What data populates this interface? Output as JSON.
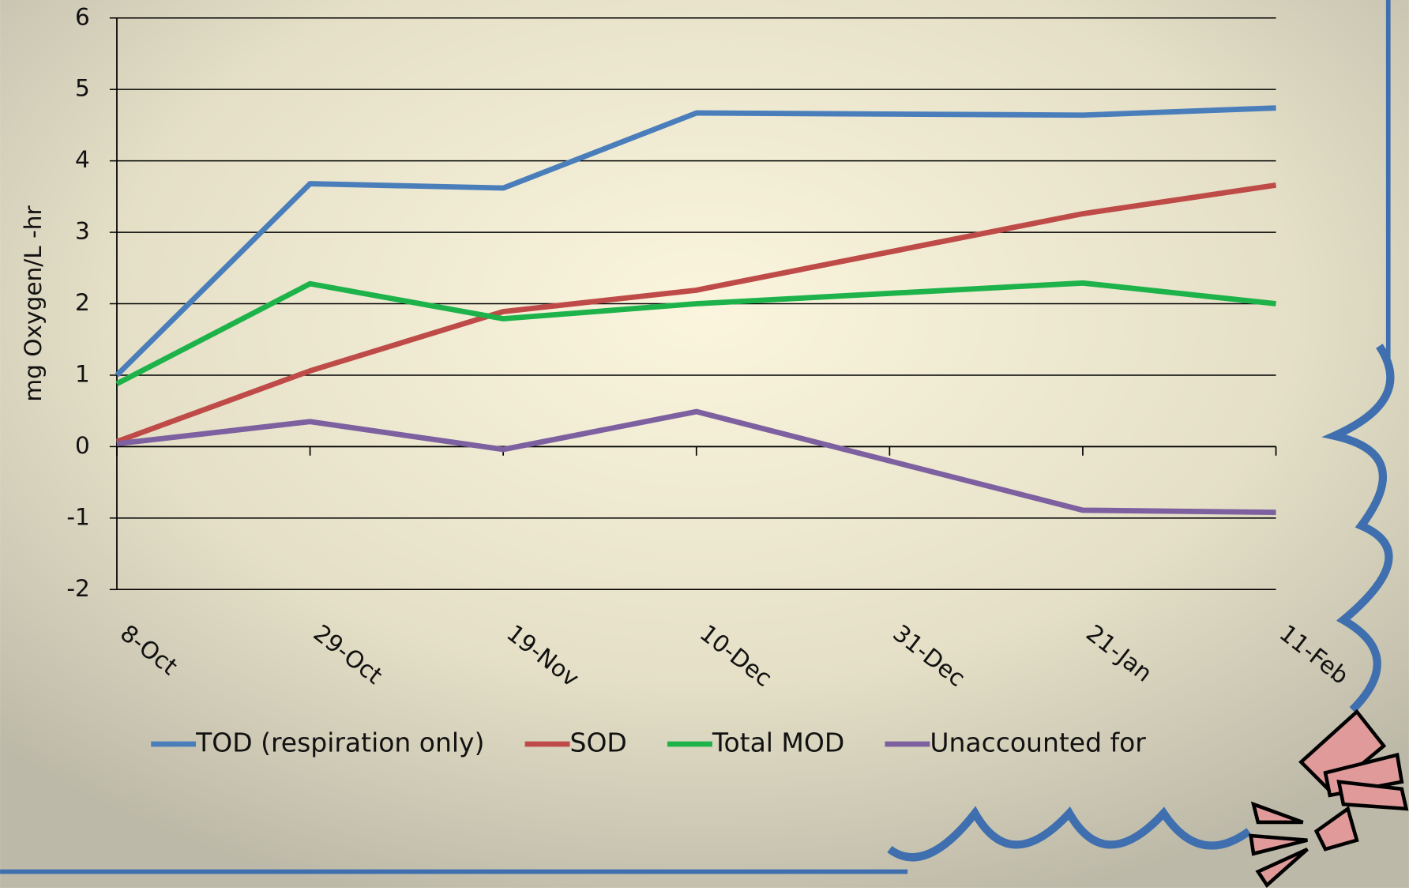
{
  "chart_data": {
    "type": "line",
    "y_label": "mg Oxygen/L -hr",
    "x": [
      0,
      21,
      42,
      63,
      105,
      126
    ],
    "xlim": [
      0,
      126
    ],
    "xticks": [
      {
        "value": 0,
        "label": "8-Oct"
      },
      {
        "value": 21,
        "label": "29-Oct"
      },
      {
        "value": 42,
        "label": "19-Nov"
      },
      {
        "value": 63,
        "label": "10-Dec"
      },
      {
        "value": 84,
        "label": "31-Dec"
      },
      {
        "value": 105,
        "label": "21-Jan"
      },
      {
        "value": 126,
        "label": "11-Feb"
      }
    ],
    "ylim": [
      -2,
      6
    ],
    "yticks": [
      -2,
      -1,
      0,
      1,
      2,
      3,
      4,
      5,
      6
    ],
    "grid": true,
    "legend": "bottom",
    "series": [
      {
        "name": "TOD (respiration only)",
        "color": "#4a7ebb",
        "values": [
          1.0,
          3.68,
          3.62,
          4.67,
          4.64,
          4.74
        ]
      },
      {
        "name": "SOD",
        "color": "#be4b48",
        "values": [
          0.07,
          1.06,
          1.89,
          2.19,
          3.26,
          3.66
        ]
      },
      {
        "name": "Total MOD",
        "color": "#1db34a",
        "values": [
          0.88,
          2.28,
          1.79,
          2.0,
          2.29,
          2.0
        ]
      },
      {
        "name": "Unaccounted for",
        "color": "#7d60a0",
        "values": [
          0.04,
          0.35,
          -0.04,
          0.49,
          -0.89,
          -0.92
        ]
      }
    ]
  }
}
